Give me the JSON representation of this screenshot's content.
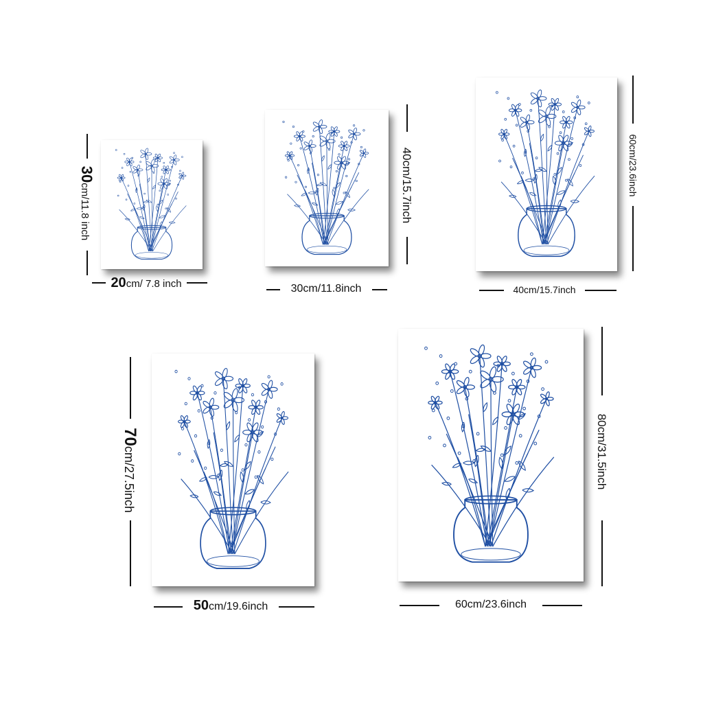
{
  "accent_color": "#1f4fa3",
  "prints": [
    {
      "name": "print-20x30",
      "art": "blue-floral-bouquet-in-vase",
      "width_label": {
        "num": "20",
        "unit": "cm/ 7.8 inch"
      },
      "height_label": {
        "num": "30",
        "unit": "cm/11.8 inch"
      }
    },
    {
      "name": "print-30x40",
      "art": "blue-floral-bouquet-in-vase",
      "width_label": {
        "num": "",
        "unit": "30cm/11.8inch"
      },
      "height_label": {
        "num": "",
        "unit": "40cm/15.7inch"
      }
    },
    {
      "name": "print-40x60",
      "art": "blue-floral-bouquet-in-vase",
      "width_label": {
        "num": "",
        "unit": "40cm/15.7inch"
      },
      "height_label": {
        "num": "",
        "unit": "60cm/23.6inch"
      }
    },
    {
      "name": "print-50x70",
      "art": "blue-floral-bouquet-in-vase",
      "width_label": {
        "num": "50",
        "unit": "cm/19.6inch"
      },
      "height_label": {
        "num": "70",
        "unit": "cm/27.5inch"
      }
    },
    {
      "name": "print-60x80",
      "art": "blue-floral-bouquet-in-vase",
      "width_label": {
        "num": "",
        "unit": "60cm/23.6inch"
      },
      "height_label": {
        "num": "",
        "unit": "80cm/31.5inch"
      }
    }
  ]
}
